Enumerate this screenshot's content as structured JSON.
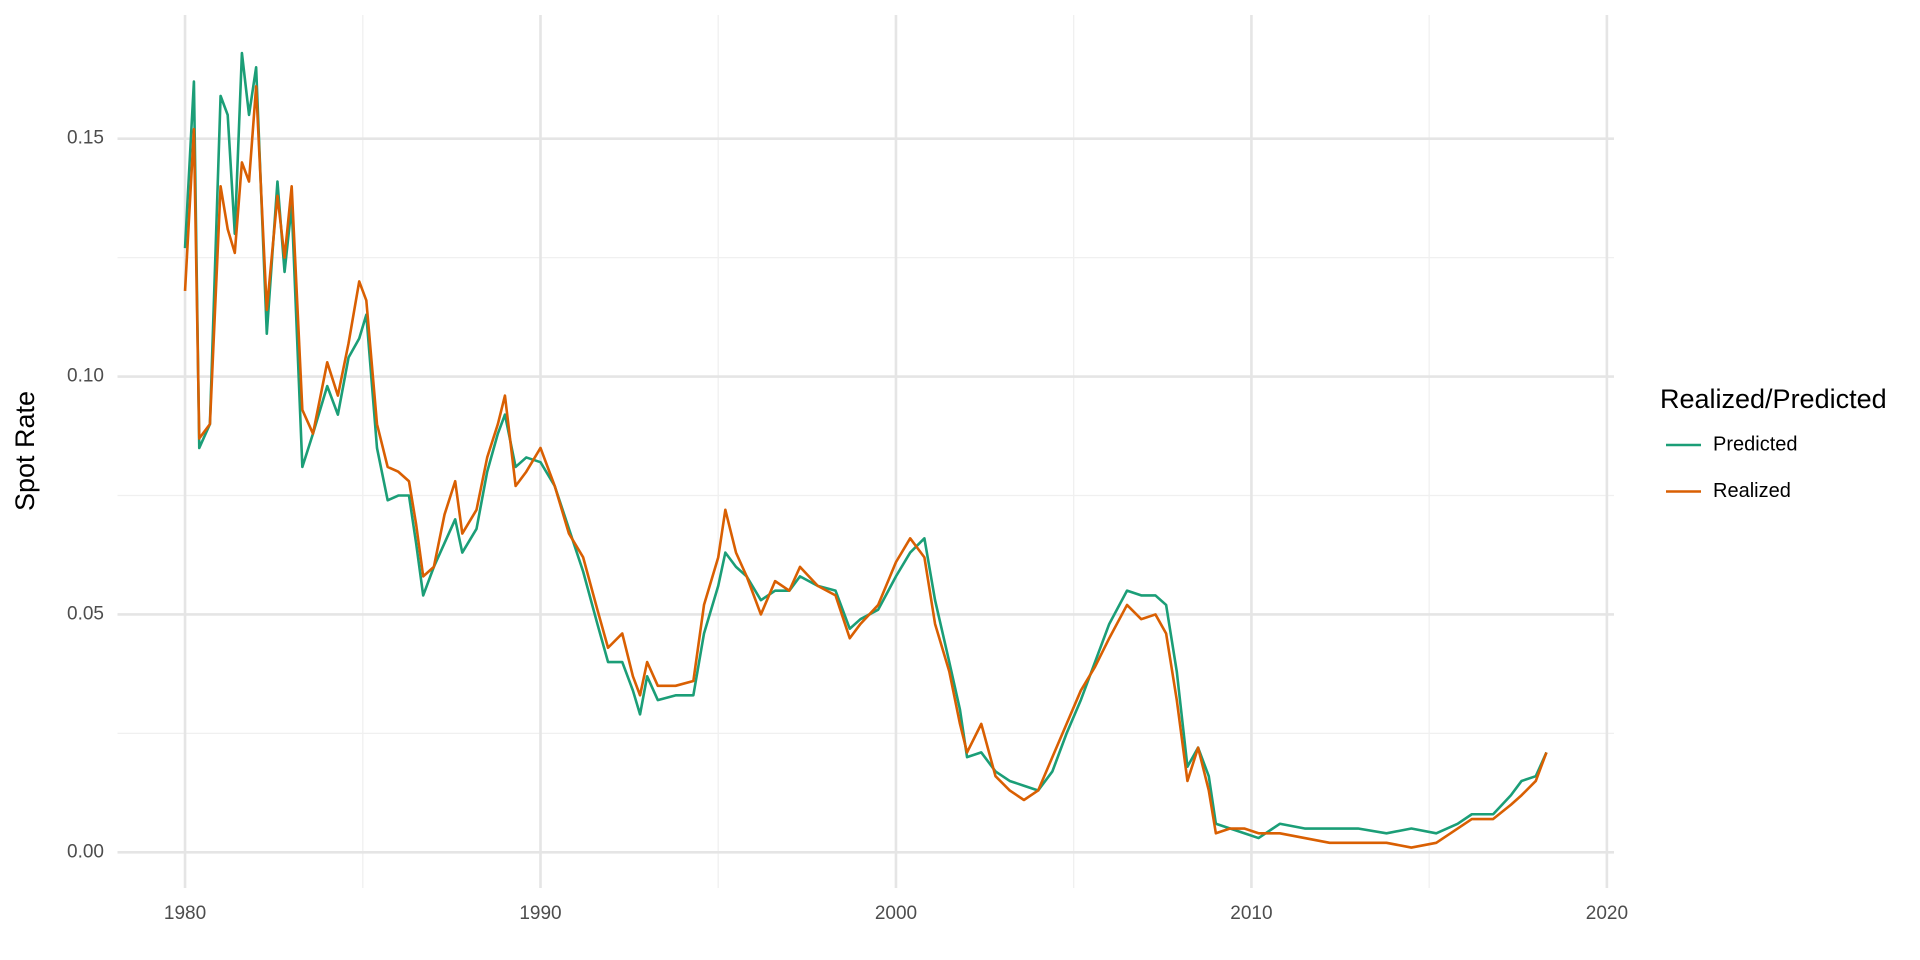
{
  "chart_data": {
    "type": "line",
    "y_label": "Spot Rate",
    "legend_title": "Realized/Predicted",
    "legend_position": "right",
    "grid": true,
    "xlim": [
      1978.1,
      2020.2
    ],
    "ylim": [
      -0.0075,
      0.176
    ],
    "xticks": [
      1980,
      1990,
      2000,
      2010,
      2020
    ],
    "yticks": [
      {
        "value": 0,
        "label": "0.00"
      },
      {
        "value": 0.05,
        "label": "0.05"
      },
      {
        "value": 0.1,
        "label": "0.10"
      },
      {
        "value": 0.15,
        "label": "0.15"
      }
    ],
    "x_minor_grid": [
      1985,
      1995,
      2005,
      2015
    ],
    "y_minor_grid": [
      0.025,
      0.075,
      0.125
    ],
    "x": [
      1980.0,
      1980.25,
      1980.4,
      1980.7,
      1981.0,
      1981.2,
      1981.4,
      1981.6,
      1981.8,
      1982.0,
      1982.3,
      1982.6,
      1982.8,
      1983.0,
      1983.3,
      1983.6,
      1984.0,
      1984.3,
      1984.6,
      1984.9,
      1985.1,
      1985.4,
      1985.7,
      1986.0,
      1986.3,
      1986.5,
      1986.7,
      1987.0,
      1987.3,
      1987.6,
      1987.8,
      1988.2,
      1988.5,
      1988.8,
      1989.0,
      1989.3,
      1989.6,
      1990.0,
      1990.4,
      1990.8,
      1991.2,
      1991.6,
      1991.9,
      1992.3,
      1992.6,
      1992.8,
      1993.0,
      1993.3,
      1993.8,
      1994.3,
      1994.6,
      1995.0,
      1995.2,
      1995.5,
      1995.8,
      1996.2,
      1996.6,
      1997.0,
      1997.3,
      1997.8,
      1998.3,
      1998.7,
      1999.0,
      1999.5,
      2000.0,
      2000.4,
      2000.8,
      2001.1,
      2001.5,
      2001.8,
      2002.0,
      2002.4,
      2002.8,
      2003.2,
      2003.6,
      2004.0,
      2004.4,
      2004.8,
      2005.2,
      2005.6,
      2006.0,
      2006.5,
      2006.9,
      2007.3,
      2007.6,
      2007.9,
      2008.2,
      2008.5,
      2008.8,
      2009.0,
      2009.4,
      2009.8,
      2010.2,
      2010.8,
      2011.5,
      2012.2,
      2013.0,
      2013.8,
      2014.5,
      2015.2,
      2015.8,
      2016.2,
      2016.8,
      2017.3,
      2017.6,
      2018.0,
      2018.3
    ],
    "series": [
      {
        "name": "Predicted",
        "color": "#1b9e77",
        "values": [
          0.127,
          0.162,
          0.085,
          0.09,
          0.159,
          0.155,
          0.13,
          0.168,
          0.155,
          0.165,
          0.109,
          0.141,
          0.122,
          0.136,
          0.081,
          0.088,
          0.098,
          0.092,
          0.104,
          0.108,
          0.113,
          0.085,
          0.074,
          0.075,
          0.075,
          0.065,
          0.054,
          0.06,
          0.065,
          0.07,
          0.063,
          0.068,
          0.08,
          0.088,
          0.092,
          0.081,
          0.083,
          0.082,
          0.077,
          0.068,
          0.059,
          0.048,
          0.04,
          0.04,
          0.034,
          0.029,
          0.037,
          0.032,
          0.033,
          0.033,
          0.046,
          0.056,
          0.063,
          0.06,
          0.058,
          0.053,
          0.055,
          0.055,
          0.058,
          0.056,
          0.055,
          0.047,
          0.049,
          0.051,
          0.058,
          0.063,
          0.066,
          0.053,
          0.04,
          0.03,
          0.02,
          0.021,
          0.017,
          0.015,
          0.014,
          0.013,
          0.017,
          0.025,
          0.032,
          0.04,
          0.048,
          0.055,
          0.054,
          0.054,
          0.052,
          0.038,
          0.018,
          0.022,
          0.016,
          0.006,
          0.005,
          0.004,
          0.003,
          0.006,
          0.005,
          0.005,
          0.005,
          0.004,
          0.005,
          0.004,
          0.006,
          0.008,
          0.008,
          0.012,
          0.015,
          0.016,
          0.021
        ]
      },
      {
        "name": "Realized",
        "color": "#d95f02",
        "values": [
          0.118,
          0.152,
          0.087,
          0.09,
          0.14,
          0.131,
          0.126,
          0.145,
          0.141,
          0.161,
          0.114,
          0.138,
          0.125,
          0.14,
          0.093,
          0.088,
          0.103,
          0.096,
          0.107,
          0.12,
          0.116,
          0.09,
          0.081,
          0.08,
          0.078,
          0.069,
          0.058,
          0.06,
          0.071,
          0.078,
          0.067,
          0.072,
          0.083,
          0.09,
          0.096,
          0.077,
          0.08,
          0.085,
          0.077,
          0.067,
          0.062,
          0.051,
          0.043,
          0.046,
          0.037,
          0.033,
          0.04,
          0.035,
          0.035,
          0.036,
          0.052,
          0.062,
          0.072,
          0.063,
          0.058,
          0.05,
          0.057,
          0.055,
          0.06,
          0.056,
          0.054,
          0.045,
          0.048,
          0.052,
          0.061,
          0.066,
          0.062,
          0.048,
          0.038,
          0.027,
          0.021,
          0.027,
          0.016,
          0.013,
          0.011,
          0.013,
          0.02,
          0.027,
          0.034,
          0.039,
          0.045,
          0.052,
          0.049,
          0.05,
          0.046,
          0.032,
          0.015,
          0.022,
          0.013,
          0.004,
          0.005,
          0.005,
          0.004,
          0.004,
          0.003,
          0.002,
          0.002,
          0.002,
          0.001,
          0.002,
          0.005,
          0.007,
          0.007,
          0.01,
          0.012,
          0.015,
          0.021
        ]
      }
    ]
  }
}
